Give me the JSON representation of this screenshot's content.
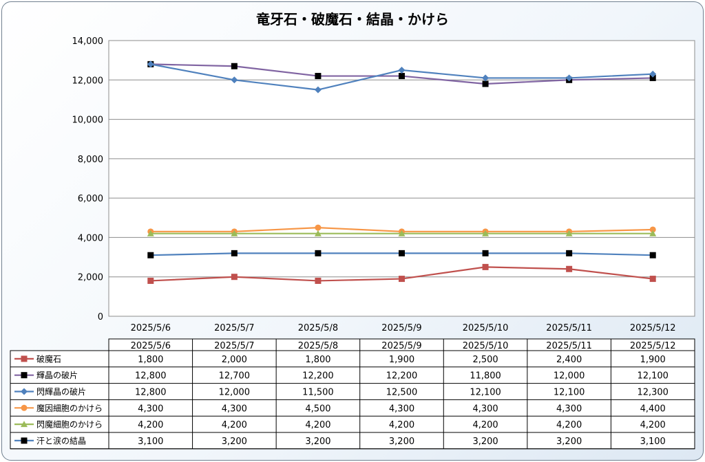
{
  "chart_data": {
    "type": "line",
    "title": "竜牙石・破魔石・結晶・かけら",
    "categories": [
      "2025/5/6",
      "2025/5/7",
      "2025/5/8",
      "2025/5/9",
      "2025/5/10",
      "2025/5/11",
      "2025/5/12"
    ],
    "ylim": [
      0,
      14000
    ],
    "yticks": [
      0,
      2000,
      4000,
      6000,
      8000,
      10000,
      12000,
      14000
    ],
    "ytick_labels": [
      "0",
      "2,000",
      "4,000",
      "6,000",
      "8,000",
      "10,000",
      "12,000",
      "14,000"
    ],
    "grid": true,
    "legend": "data-table",
    "series": [
      {
        "name": "破魔石",
        "color": "#c0504d",
        "marker": "square",
        "values": [
          1800,
          2000,
          1800,
          1900,
          2500,
          2400,
          1900
        ],
        "labels": [
          "1,800",
          "2,000",
          "1,800",
          "1,900",
          "2,500",
          "2,400",
          "1,900"
        ]
      },
      {
        "name": "輝晶の破片",
        "color": "#8064a2",
        "marker": "square-black",
        "values": [
          12800,
          12700,
          12200,
          12200,
          11800,
          12000,
          12100
        ],
        "labels": [
          "12,800",
          "12,700",
          "12,200",
          "12,200",
          "11,800",
          "12,000",
          "12,100"
        ]
      },
      {
        "name": "閃輝晶の破片",
        "color": "#4f81bd",
        "marker": "diamond",
        "values": [
          12800,
          12000,
          11500,
          12500,
          12100,
          12100,
          12300
        ],
        "labels": [
          "12,800",
          "12,000",
          "11,500",
          "12,500",
          "12,100",
          "12,100",
          "12,300"
        ]
      },
      {
        "name": "魔因細胞のかけら",
        "color": "#f79646",
        "marker": "circle",
        "values": [
          4300,
          4300,
          4500,
          4300,
          4300,
          4300,
          4400
        ],
        "labels": [
          "4,300",
          "4,300",
          "4,500",
          "4,300",
          "4,300",
          "4,300",
          "4,400"
        ]
      },
      {
        "name": "閃魔細胞のかけら",
        "color": "#9bbb59",
        "marker": "triangle",
        "values": [
          4200,
          4200,
          4200,
          4200,
          4200,
          4200,
          4200
        ],
        "labels": [
          "4,200",
          "4,200",
          "4,200",
          "4,200",
          "4,200",
          "4,200",
          "4,200"
        ]
      },
      {
        "name": "汗と涙の結晶",
        "color": "#4f81bd",
        "marker": "square-black",
        "values": [
          3100,
          3200,
          3200,
          3200,
          3200,
          3200,
          3100
        ],
        "labels": [
          "3,100",
          "3,200",
          "3,200",
          "3,200",
          "3,200",
          "3,200",
          "3,100"
        ]
      }
    ]
  }
}
